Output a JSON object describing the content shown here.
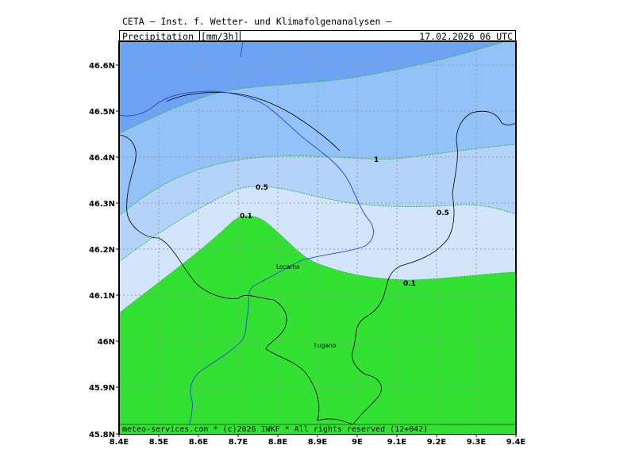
{
  "header": {
    "title": "CETA — Inst. f. Wetter- und Klimafolgenanalysen —"
  },
  "label_bar": {
    "parameter": "Precipitation_",
    "unit": "[mm/3h]",
    "valid_time": "17.02.2026 06 UTC"
  },
  "map": {
    "lon_ticks": [
      "8.4E",
      "8.5E",
      "8.6E",
      "8.7E",
      "8.8E",
      "8.9E",
      "9E",
      "9.1E",
      "9.2E",
      "9.3E",
      "9.4E"
    ],
    "lat_ticks": [
      "46.6N",
      "46.5N",
      "46.4N",
      "46.3N",
      "46.2N",
      "46.1N",
      "46N",
      "45.9N",
      "45.8N"
    ],
    "towns": [
      "Locarno",
      "Lugano"
    ],
    "contour_labels": [
      "1",
      "0.5",
      "0.5",
      "0.1",
      "0.1"
    ],
    "colors": {
      "band_gt1_dark": "#6ca3f2",
      "band_gt1": "#92c2f8",
      "band_05_1": "#b4d3f9",
      "band_01_05": "#d3e5fb",
      "band_lt01": "#33e133",
      "contour_line": "#32b44a",
      "lake_river": "#2a45e0",
      "border": "#000000",
      "grid": "#9a9a9a"
    }
  },
  "footer": {
    "credit": "meteo-services.com * (c)2026 IWKF * All rights reserved (12+042)"
  }
}
